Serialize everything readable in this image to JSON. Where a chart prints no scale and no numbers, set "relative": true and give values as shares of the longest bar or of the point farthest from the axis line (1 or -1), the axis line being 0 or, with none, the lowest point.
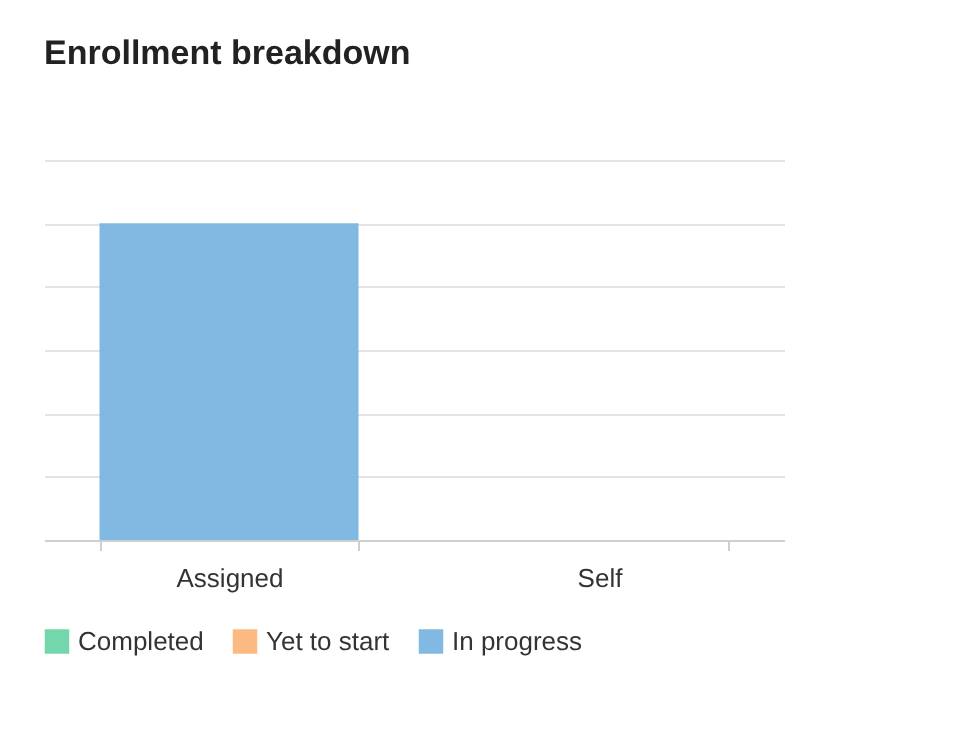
{
  "chart_data": {
    "type": "bar",
    "title": "Enrollment breakdown",
    "categories": [
      "Assigned",
      "Self"
    ],
    "relative": true,
    "grid": "y",
    "legend": "bottom",
    "series": [
      {
        "name": "Completed",
        "color": "#6dd5a8",
        "values": [
          null,
          null
        ]
      },
      {
        "name": "Yet to start",
        "color": "#fdb57b",
        "values": [
          null,
          null
        ]
      },
      {
        "name": "In progress",
        "color": "#7bb5e2",
        "values": [
          1,
          null
        ]
      }
    ]
  }
}
